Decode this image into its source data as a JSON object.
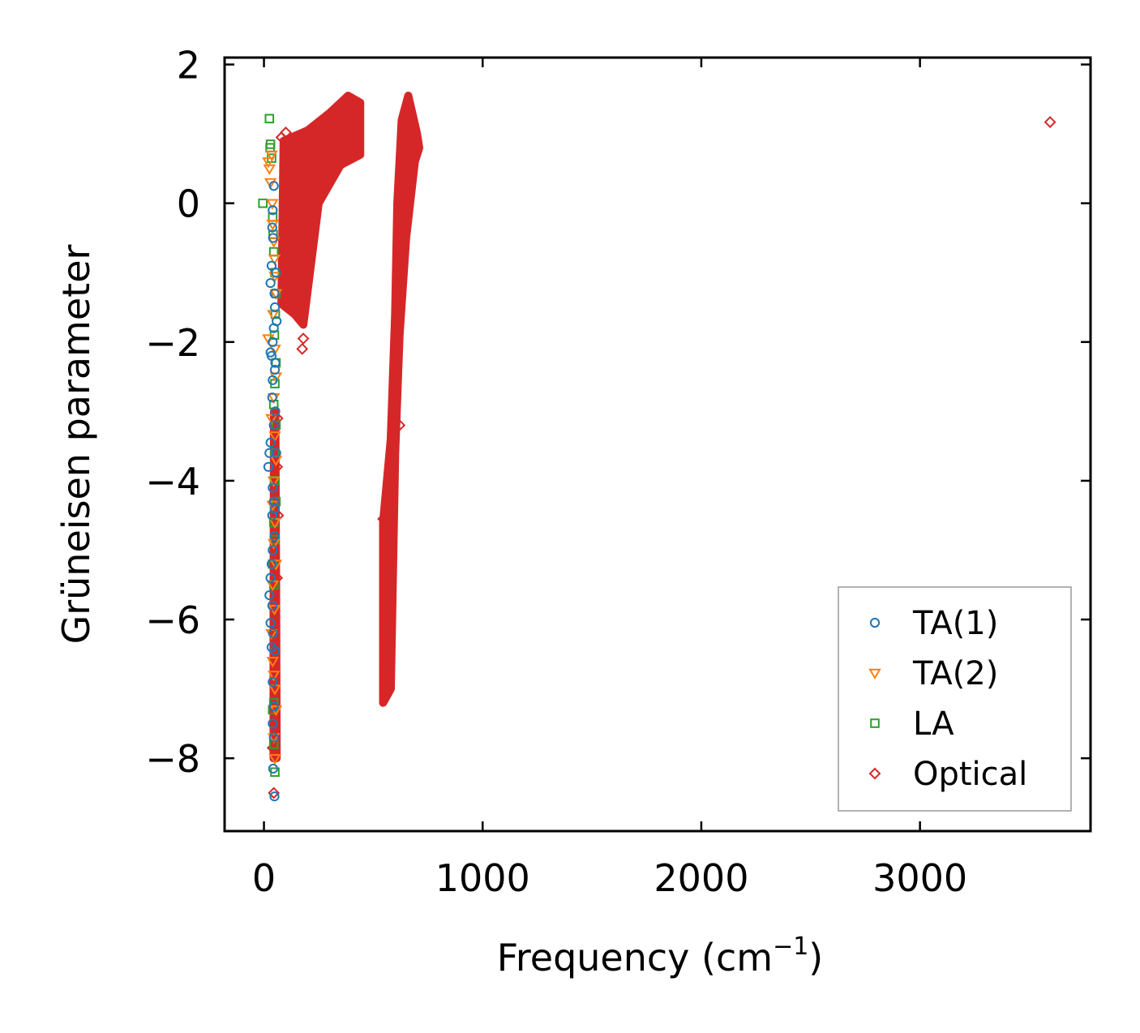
{
  "chart_data": {
    "type": "scatter",
    "title": "",
    "xlabel": "Frequency (cm",
    "xlabel_sup": "−1",
    "xlabel_close": ")",
    "ylabel": "Grüneisen parameter",
    "xlim": [
      -180,
      3780
    ],
    "ylim": [
      -9.05,
      2.1
    ],
    "xticks": [
      0,
      1000,
      2000,
      3000
    ],
    "xtick_labels": [
      "0",
      "1000",
      "2000",
      "3000"
    ],
    "yticks": [
      2,
      0,
      -2,
      -4,
      -6,
      -8
    ],
    "ytick_labels": [
      "2",
      "0",
      "−2",
      "−4",
      "−6",
      "−8"
    ],
    "grid": false,
    "legend_position": "bottom-right",
    "series": [
      {
        "name": "TA(1)",
        "marker": "circle",
        "color": "#1f77b4",
        "points": [
          [
            45,
            0.25
          ],
          [
            40,
            -0.1
          ],
          [
            38,
            -0.35
          ],
          [
            42,
            -0.5
          ],
          [
            35,
            -0.9
          ],
          [
            30,
            -1.15
          ],
          [
            48,
            -1.3
          ],
          [
            50,
            -1.5
          ],
          [
            45,
            -1.8
          ],
          [
            40,
            -2.0
          ],
          [
            30,
            -2.15
          ],
          [
            35,
            -2.2
          ],
          [
            50,
            -2.4
          ],
          [
            40,
            -2.55
          ],
          [
            38,
            -2.8
          ],
          [
            52,
            -3.0
          ],
          [
            45,
            -3.2
          ],
          [
            30,
            -3.45
          ],
          [
            25,
            -3.6
          ],
          [
            20,
            -3.8
          ],
          [
            40,
            -4.1
          ],
          [
            45,
            -4.3
          ],
          [
            38,
            -4.5
          ],
          [
            48,
            -4.8
          ],
          [
            40,
            -5.0
          ],
          [
            35,
            -5.2
          ],
          [
            30,
            -5.4
          ],
          [
            25,
            -5.65
          ],
          [
            38,
            -5.8
          ],
          [
            30,
            -6.05
          ],
          [
            42,
            -6.2
          ],
          [
            35,
            -6.4
          ],
          [
            50,
            -6.45
          ],
          [
            40,
            -6.9
          ],
          [
            45,
            -7.25
          ],
          [
            40,
            -7.5
          ],
          [
            45,
            -7.7
          ],
          [
            42,
            -8.15
          ],
          [
            48,
            -8.55
          ],
          [
            55,
            -1.0
          ],
          [
            58,
            -1.7
          ],
          [
            52,
            -2.3
          ],
          [
            56,
            -3.6
          ],
          [
            50,
            -4.4
          ]
        ]
      },
      {
        "name": "TA(2)",
        "marker": "triangle-down",
        "color": "#ff7f0e",
        "points": [
          [
            20,
            0.6
          ],
          [
            25,
            0.5
          ],
          [
            30,
            0.3
          ],
          [
            35,
            0.7
          ],
          [
            38,
            0.0
          ],
          [
            40,
            -0.3
          ],
          [
            45,
            -0.55
          ],
          [
            48,
            -0.8
          ],
          [
            50,
            -1.05
          ],
          [
            55,
            -1.3
          ],
          [
            42,
            -1.6
          ],
          [
            20,
            -1.95
          ],
          [
            50,
            -2.1
          ],
          [
            55,
            -2.5
          ],
          [
            45,
            -2.8
          ],
          [
            35,
            -3.1
          ],
          [
            50,
            -3.35
          ],
          [
            55,
            -3.7
          ],
          [
            45,
            -4.0
          ],
          [
            40,
            -4.35
          ],
          [
            50,
            -4.6
          ],
          [
            45,
            -4.9
          ],
          [
            55,
            -5.2
          ],
          [
            40,
            -5.5
          ],
          [
            48,
            -5.85
          ],
          [
            35,
            -6.2
          ],
          [
            40,
            -6.6
          ],
          [
            45,
            -6.8
          ],
          [
            50,
            -7.0
          ],
          [
            55,
            -7.3
          ],
          [
            45,
            -7.7
          ],
          [
            50,
            -8.0
          ]
        ]
      },
      {
        "name": "LA",
        "marker": "square",
        "color": "#2ca02c",
        "points": [
          [
            25,
            1.22
          ],
          [
            30,
            0.85
          ],
          [
            28,
            0.8
          ],
          [
            35,
            0.65
          ],
          [
            -5,
            0.0
          ],
          [
            40,
            -0.2
          ],
          [
            42,
            -0.45
          ],
          [
            45,
            -0.7
          ],
          [
            50,
            -1.0
          ],
          [
            55,
            -1.3
          ],
          [
            52,
            -1.6
          ],
          [
            48,
            -1.9
          ],
          [
            55,
            -2.3
          ],
          [
            50,
            -2.6
          ],
          [
            45,
            -2.9
          ],
          [
            55,
            -3.2
          ],
          [
            50,
            -3.6
          ],
          [
            48,
            -4.0
          ],
          [
            55,
            -4.3
          ],
          [
            45,
            -4.6
          ],
          [
            50,
            -4.85
          ],
          [
            40,
            -5.2
          ],
          [
            45,
            -5.5
          ],
          [
            45,
            -7.2
          ],
          [
            40,
            -7.3
          ],
          [
            45,
            -7.8
          ],
          [
            50,
            -8.2
          ]
        ]
      },
      {
        "name": "Optical",
        "marker": "diamond",
        "color": "#d62728",
        "points": [
          [
            100,
            1.02
          ],
          [
            80,
            0.95
          ],
          [
            3595,
            1.17
          ],
          [
            180,
            -1.95
          ],
          [
            175,
            -2.1
          ],
          [
            620,
            -3.2
          ],
          [
            545,
            -4.55
          ],
          [
            50,
            -7.95
          ],
          [
            45,
            -8.5
          ],
          [
            40,
            -7.85
          ],
          [
            60,
            -5.4
          ],
          [
            65,
            -4.5
          ],
          [
            60,
            -3.8
          ],
          [
            62,
            -3.1
          ]
        ],
        "bands": [
          {
            "ymax": [
              [
                90,
                0.9
              ],
              [
                200,
                1.05
              ],
              [
                300,
                1.3
              ],
              [
                385,
                1.55
              ],
              [
                440,
                1.45
              ]
            ],
            "ymin": [
              [
                80,
                -1.45
              ],
              [
                140,
                -1.6
              ],
              [
                180,
                -1.75
              ],
              [
                250,
                0.0
              ],
              [
                350,
                0.55
              ],
              [
                440,
                0.7
              ]
            ]
          },
          {
            "ymax": [
              [
                545,
                -4.6
              ],
              [
                580,
                -3.4
              ],
              [
                600,
                -1.6
              ],
              [
                610,
                0.0
              ],
              [
                630,
                1.2
              ],
              [
                660,
                1.55
              ],
              [
                700,
                1.0
              ]
            ],
            "ymin": [
              [
                545,
                -7.2
              ],
              [
                580,
                -7.0
              ],
              [
                600,
                -3.6
              ],
              [
                620,
                -1.9
              ],
              [
                650,
                -0.5
              ],
              [
                690,
                0.6
              ],
              [
                710,
                0.8
              ]
            ]
          },
          {
            "ymax": [
              [
                52,
                -3.0
              ],
              [
                56,
                -6.0
              ],
              [
                58,
                -8.0
              ]
            ],
            "ymin": [
              [
                46,
                -3.0
              ],
              [
                44,
                -6.0
              ],
              [
                44,
                -8.0
              ]
            ]
          }
        ]
      }
    ]
  }
}
